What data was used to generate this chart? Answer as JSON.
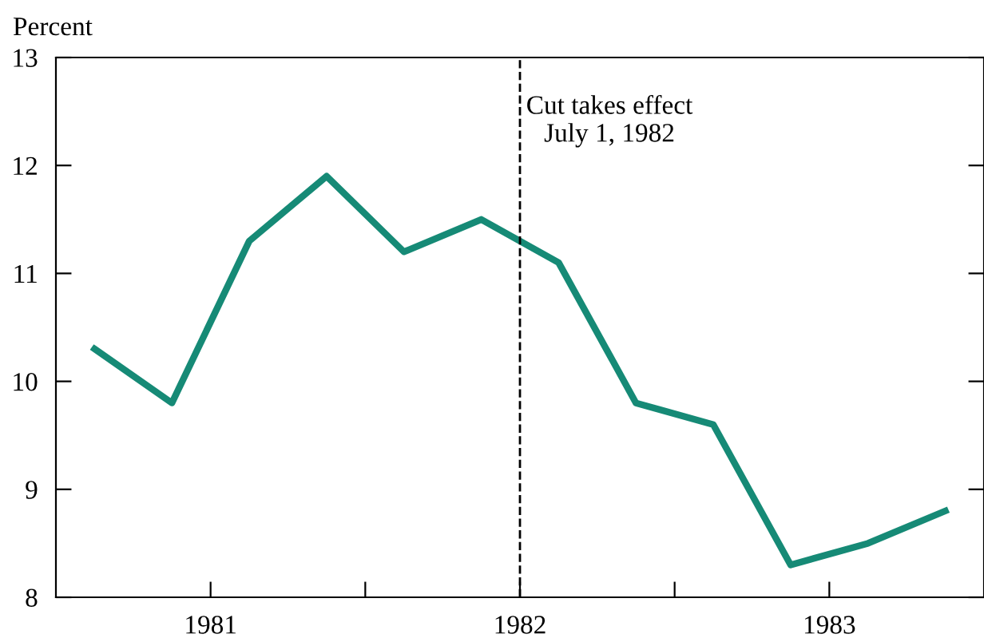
{
  "chart_data": {
    "type": "line",
    "ylabel": "Percent",
    "x": [
      1981.125,
      1981.375,
      1981.625,
      1981.875,
      1982.125,
      1982.375,
      1982.625,
      1982.875,
      1983.125,
      1983.375,
      1983.625,
      1983.875
    ],
    "series": [
      {
        "color": "#168a76",
        "values": [
          10.3,
          9.8,
          11.3,
          11.9,
          11.2,
          11.5,
          11.1,
          9.8,
          9.6,
          8.3,
          8.5,
          8.8
        ]
      }
    ],
    "xlim": [
      1981,
      1984
    ],
    "xticks": [
      {
        "value": 1981.5,
        "label": "1981"
      },
      {
        "value": 1982,
        "label": null
      },
      {
        "value": 1982.5,
        "label": "1982"
      },
      {
        "value": 1983,
        "label": null
      },
      {
        "value": 1983.5,
        "label": "1983"
      }
    ],
    "ylim": [
      8,
      13
    ],
    "yticks": [
      8,
      9,
      10,
      11,
      12,
      13
    ],
    "ref_lines": [
      {
        "axis": "x",
        "value": 1982.5,
        "label": "Cut takes effect\nJuly 1, 1982",
        "color": "#000000",
        "line_style": "dashed"
      }
    ],
    "grid": false,
    "legend": false,
    "marker": "none",
    "line_style": "solid"
  }
}
